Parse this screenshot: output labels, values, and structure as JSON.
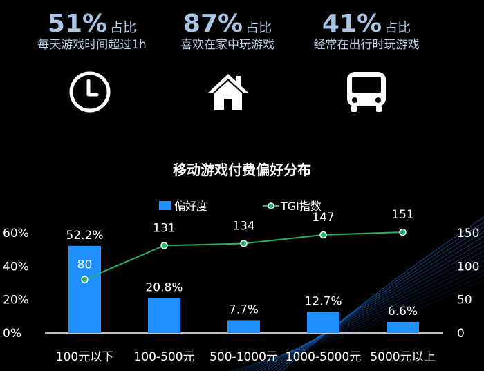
{
  "stats": [
    {
      "percent": "51%",
      "suffix": "占比",
      "desc": "每天游戏时间超过1h",
      "icon": "clock-icon"
    },
    {
      "percent": "87%",
      "suffix": "占比",
      "desc": "喜欢在家中玩游戏",
      "icon": "home-icon"
    },
    {
      "percent": "41%",
      "suffix": "占比",
      "desc": "经常在出行时玩游戏",
      "icon": "bus-icon"
    }
  ],
  "colors": {
    "bar": "#1e90ff",
    "line": "#27b36a",
    "stat_text": "#b9cfe6",
    "background": "#000000"
  },
  "chart_data": {
    "type": "bar",
    "title": "移动游戏付费偏好分布",
    "categories": [
      "100元以下",
      "100-500元",
      "500-1000元",
      "1000-5000元",
      "5000元以上"
    ],
    "series": [
      {
        "name": "偏好度",
        "type": "bar",
        "values": [
          52.2,
          20.8,
          7.7,
          12.7,
          6.6
        ],
        "labels": [
          "52.2%",
          "20.8%",
          "7.7%",
          "12.7%",
          "6.6%"
        ],
        "axis": "left"
      },
      {
        "name": "TGI指数",
        "type": "line",
        "values": [
          80,
          131,
          134,
          147,
          151
        ],
        "labels": [
          "80",
          "131",
          "134",
          "147",
          "151"
        ],
        "axis": "right"
      }
    ],
    "y_left": {
      "min": 0,
      "max": 60,
      "ticks": [
        "0%",
        "20%",
        "40%",
        "60%"
      ]
    },
    "y_right": {
      "min": 0,
      "max": 150,
      "ticks": [
        "0",
        "50",
        "100",
        "150"
      ]
    },
    "legend_position": "top-center"
  }
}
